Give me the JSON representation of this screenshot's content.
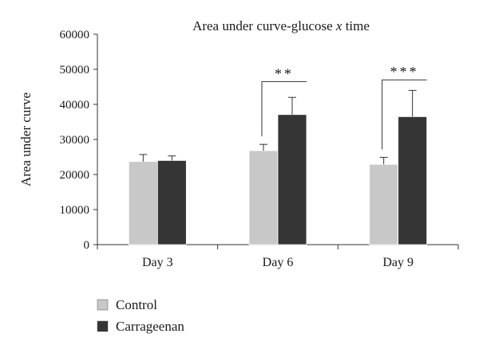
{
  "chart_data": {
    "type": "bar",
    "title_prefix": "Area under curve-glucose ",
    "title_italic": "x",
    "title_suffix": " time",
    "ylabel": "Area under curve",
    "xlabel": "",
    "categories": [
      "Day 3",
      "Day 6",
      "Day 9"
    ],
    "ylim": [
      0,
      60000
    ],
    "yticks": [
      0,
      10000,
      20000,
      30000,
      40000,
      50000,
      60000
    ],
    "ytick_labels": [
      "0",
      "10000",
      "20000",
      "30000",
      "40000",
      "50000",
      "60000"
    ],
    "series": [
      {
        "name": "Control",
        "color": "#c8c8c8",
        "values": [
          23700,
          26800,
          22900
        ],
        "errors": [
          2000,
          1800,
          2000
        ]
      },
      {
        "name": "Carrageenan",
        "color": "#353535",
        "values": [
          24000,
          37100,
          36500
        ],
        "errors": [
          1300,
          4900,
          7500
        ]
      }
    ],
    "significance": [
      {
        "category_index": 1,
        "label": "**",
        "bracket_top": 46500
      },
      {
        "category_index": 2,
        "label": "***",
        "bracket_top": 47000
      }
    ],
    "legend_position": "bottom-left",
    "grid": false
  }
}
